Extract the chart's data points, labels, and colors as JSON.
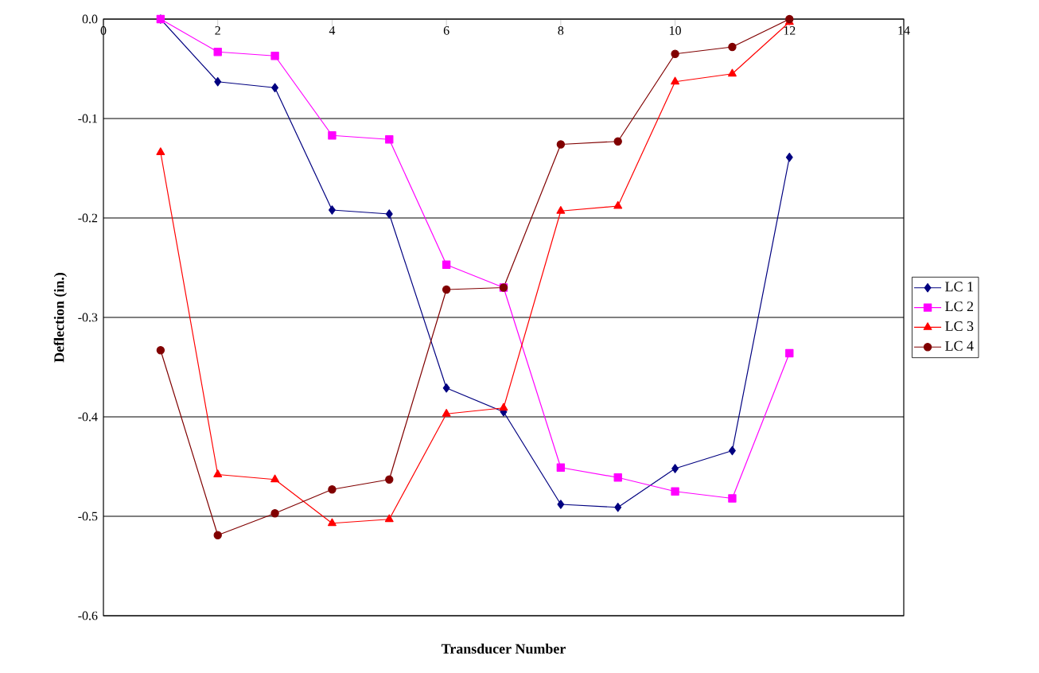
{
  "chart_data": {
    "type": "line",
    "xlabel": "Transducer Number",
    "ylabel": "Deflection (in.)",
    "x": [
      1,
      2,
      3,
      4,
      5,
      6,
      7,
      8,
      9,
      10,
      11,
      12
    ],
    "series": [
      {
        "name": "LC 1",
        "color": "#000080",
        "marker": "diamond",
        "values": [
          0,
          -0.063,
          -0.069,
          -0.192,
          -0.196,
          -0.371,
          -0.395,
          -0.488,
          -0.491,
          -0.452,
          -0.434,
          -0.139
        ]
      },
      {
        "name": "LC 2",
        "color": "#ff00ff",
        "marker": "square",
        "values": [
          0,
          -0.033,
          -0.037,
          -0.117,
          -0.121,
          -0.247,
          -0.27,
          -0.451,
          -0.461,
          -0.475,
          -0.482,
          -0.336
        ]
      },
      {
        "name": "LC 3",
        "color": "#ff0000",
        "marker": "triangle",
        "values": [
          -0.134,
          -0.458,
          -0.463,
          -0.507,
          -0.503,
          -0.397,
          -0.391,
          -0.193,
          -0.188,
          -0.063,
          -0.055,
          -0.003
        ]
      },
      {
        "name": "LC 4",
        "color": "#800000",
        "marker": "circle",
        "values": [
          -0.333,
          -0.519,
          -0.497,
          -0.473,
          -0.463,
          -0.272,
          -0.27,
          -0.126,
          -0.123,
          -0.035,
          -0.028,
          0
        ]
      }
    ],
    "xlim": [
      0,
      14
    ],
    "xticks": [
      0,
      2,
      4,
      6,
      8,
      10,
      12,
      14
    ],
    "ylim": [
      -0.6,
      0
    ],
    "yticks": [
      {
        "value": -0.6,
        "label": "-0.6"
      },
      {
        "value": -0.5,
        "label": "-0.5"
      },
      {
        "value": -0.4,
        "label": "-0.4"
      },
      {
        "value": -0.3,
        "label": "-0.3"
      },
      {
        "value": -0.2,
        "label": "-0.2"
      },
      {
        "value": -0.1,
        "label": "-0.1"
      },
      {
        "value": 0,
        "label": "0.0"
      }
    ],
    "grid": "y",
    "legend": "right"
  }
}
